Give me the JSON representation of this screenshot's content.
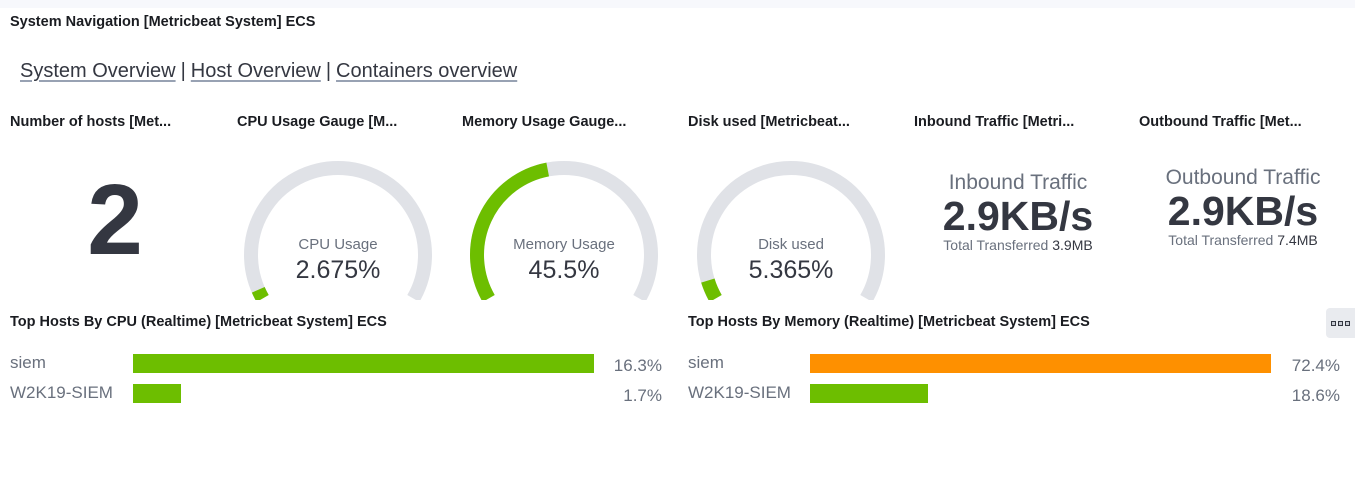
{
  "navigation_panel": {
    "title": "System Navigation [Metricbeat System] ECS",
    "links": [
      {
        "label": "System Overview"
      },
      {
        "label": "Host Overview"
      },
      {
        "label": "Containers overview"
      }
    ],
    "separator": "|"
  },
  "panels": {
    "hosts": {
      "title": "Number of hosts [Met...",
      "value": "2"
    },
    "cpu_gauge": {
      "title": "CPU Usage Gauge [M...",
      "label": "CPU Usage",
      "value": "2.675%",
      "percent": 2.675
    },
    "memory_gauge": {
      "title": "Memory Usage Gauge...",
      "label": "Memory Usage",
      "value": "45.5%",
      "percent": 45.5
    },
    "disk_gauge": {
      "title": "Disk used [Metricbeat...",
      "label": "Disk used",
      "value": "5.365%",
      "percent": 5.365
    },
    "inbound": {
      "title": "Inbound Traffic [Metri...",
      "label": "Inbound Traffic",
      "value": "2.9KB/s",
      "total_label": "Total Transferred",
      "total_value": "3.9MB"
    },
    "outbound": {
      "title": "Outbound Traffic [Met...",
      "label": "Outbound Traffic",
      "value": "2.9KB/s",
      "total_label": "Total Transferred",
      "total_value": "7.4MB"
    }
  },
  "top_cpu": {
    "title": "Top Hosts By CPU (Realtime) [Metricbeat System] ECS",
    "rows": [
      {
        "name": "siem",
        "value": "16.3%",
        "percent": 16.3,
        "color": "#6dbe00"
      },
      {
        "name": "W2K19-SIEM",
        "value": "1.7%",
        "percent": 1.7,
        "color": "#6dbe00"
      }
    ]
  },
  "top_memory": {
    "title": "Top Hosts By Memory (Realtime) [Metricbeat System] ECS",
    "rows": [
      {
        "name": "siem",
        "value": "72.4%",
        "percent": 72.4,
        "color": "#fe9000"
      },
      {
        "name": "W2K19-SIEM",
        "value": "18.6%",
        "percent": 18.6,
        "color": "#6dbe00"
      }
    ],
    "options_icon": "more-options-icon"
  },
  "colors": {
    "gauge_fill": "#6dbe00",
    "gauge_track": "#e0e2e7",
    "warning": "#fe9000",
    "text_dark": "#343741"
  }
}
